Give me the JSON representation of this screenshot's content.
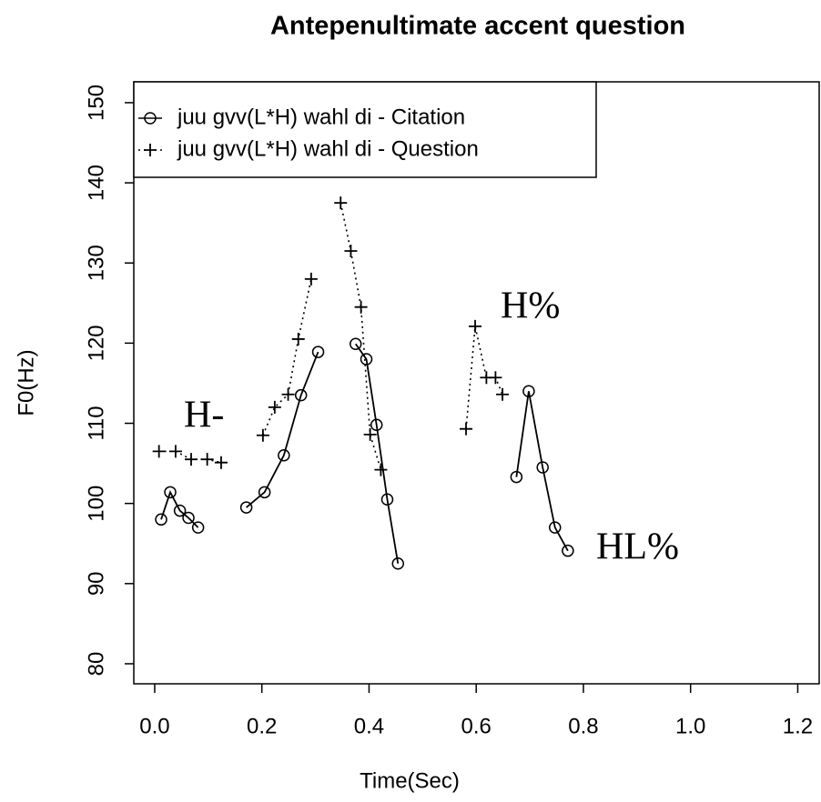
{
  "chart_data": {
    "type": "line",
    "title": "Antepenultimate accent question",
    "x_label": "Time(Sec)",
    "y_label": "F0(Hz)",
    "xlim": [
      -0.039,
      1.24
    ],
    "ylim": [
      77.5,
      152.6
    ],
    "xticks": [
      {
        "value": 0,
        "label": "0.0"
      },
      0.2,
      0.4,
      0.6,
      0.8,
      {
        "value": 1,
        "label": "1.0"
      },
      1.2
    ],
    "yticks": [
      80,
      90,
      100,
      110,
      120,
      130,
      140,
      150
    ],
    "legend": "top-left",
    "series": [
      {
        "name": "juu gvv(L*H) wahl di - Citation",
        "color": "#000000",
        "marker": "circle",
        "line": "solid",
        "x": [
          0.012,
          0.029,
          0.047,
          0.063,
          0.081,
          null,
          0.171,
          0.205,
          0.241,
          0.273,
          0.305,
          null,
          0.375,
          0.395,
          0.414,
          0.434,
          0.454,
          null,
          0.675,
          0.698,
          0.724,
          0.747,
          0.771
        ],
        "values": [
          98.0,
          101.4,
          99.1,
          98.2,
          97.0,
          null,
          99.5,
          101.4,
          106.0,
          113.5,
          118.9,
          null,
          119.9,
          118.0,
          109.8,
          100.5,
          92.5,
          null,
          103.3,
          114.0,
          104.5,
          97.0,
          94.1
        ]
      },
      {
        "name": "juu gvv(L*H) wahl di - Question",
        "color": "#000000",
        "marker": "plus",
        "line": "dotted",
        "x": [
          0.008,
          0.039,
          0.068,
          0.098,
          0.124,
          null,
          0.202,
          0.224,
          0.249,
          0.268,
          0.292,
          null,
          0.347,
          0.366,
          0.385,
          0.402,
          0.422,
          null,
          0.581,
          0.598,
          0.619,
          0.636,
          0.649
        ],
        "values": [
          106.5,
          106.5,
          105.5,
          105.5,
          105.1,
          null,
          108.5,
          112.0,
          113.6,
          120.5,
          128.0,
          null,
          137.5,
          131.5,
          124.5,
          108.6,
          104.2,
          null,
          109.3,
          122.1,
          115.7,
          115.7,
          113.6
        ]
      }
    ],
    "annotations": [
      "H-",
      "H%",
      "HL%"
    ]
  }
}
